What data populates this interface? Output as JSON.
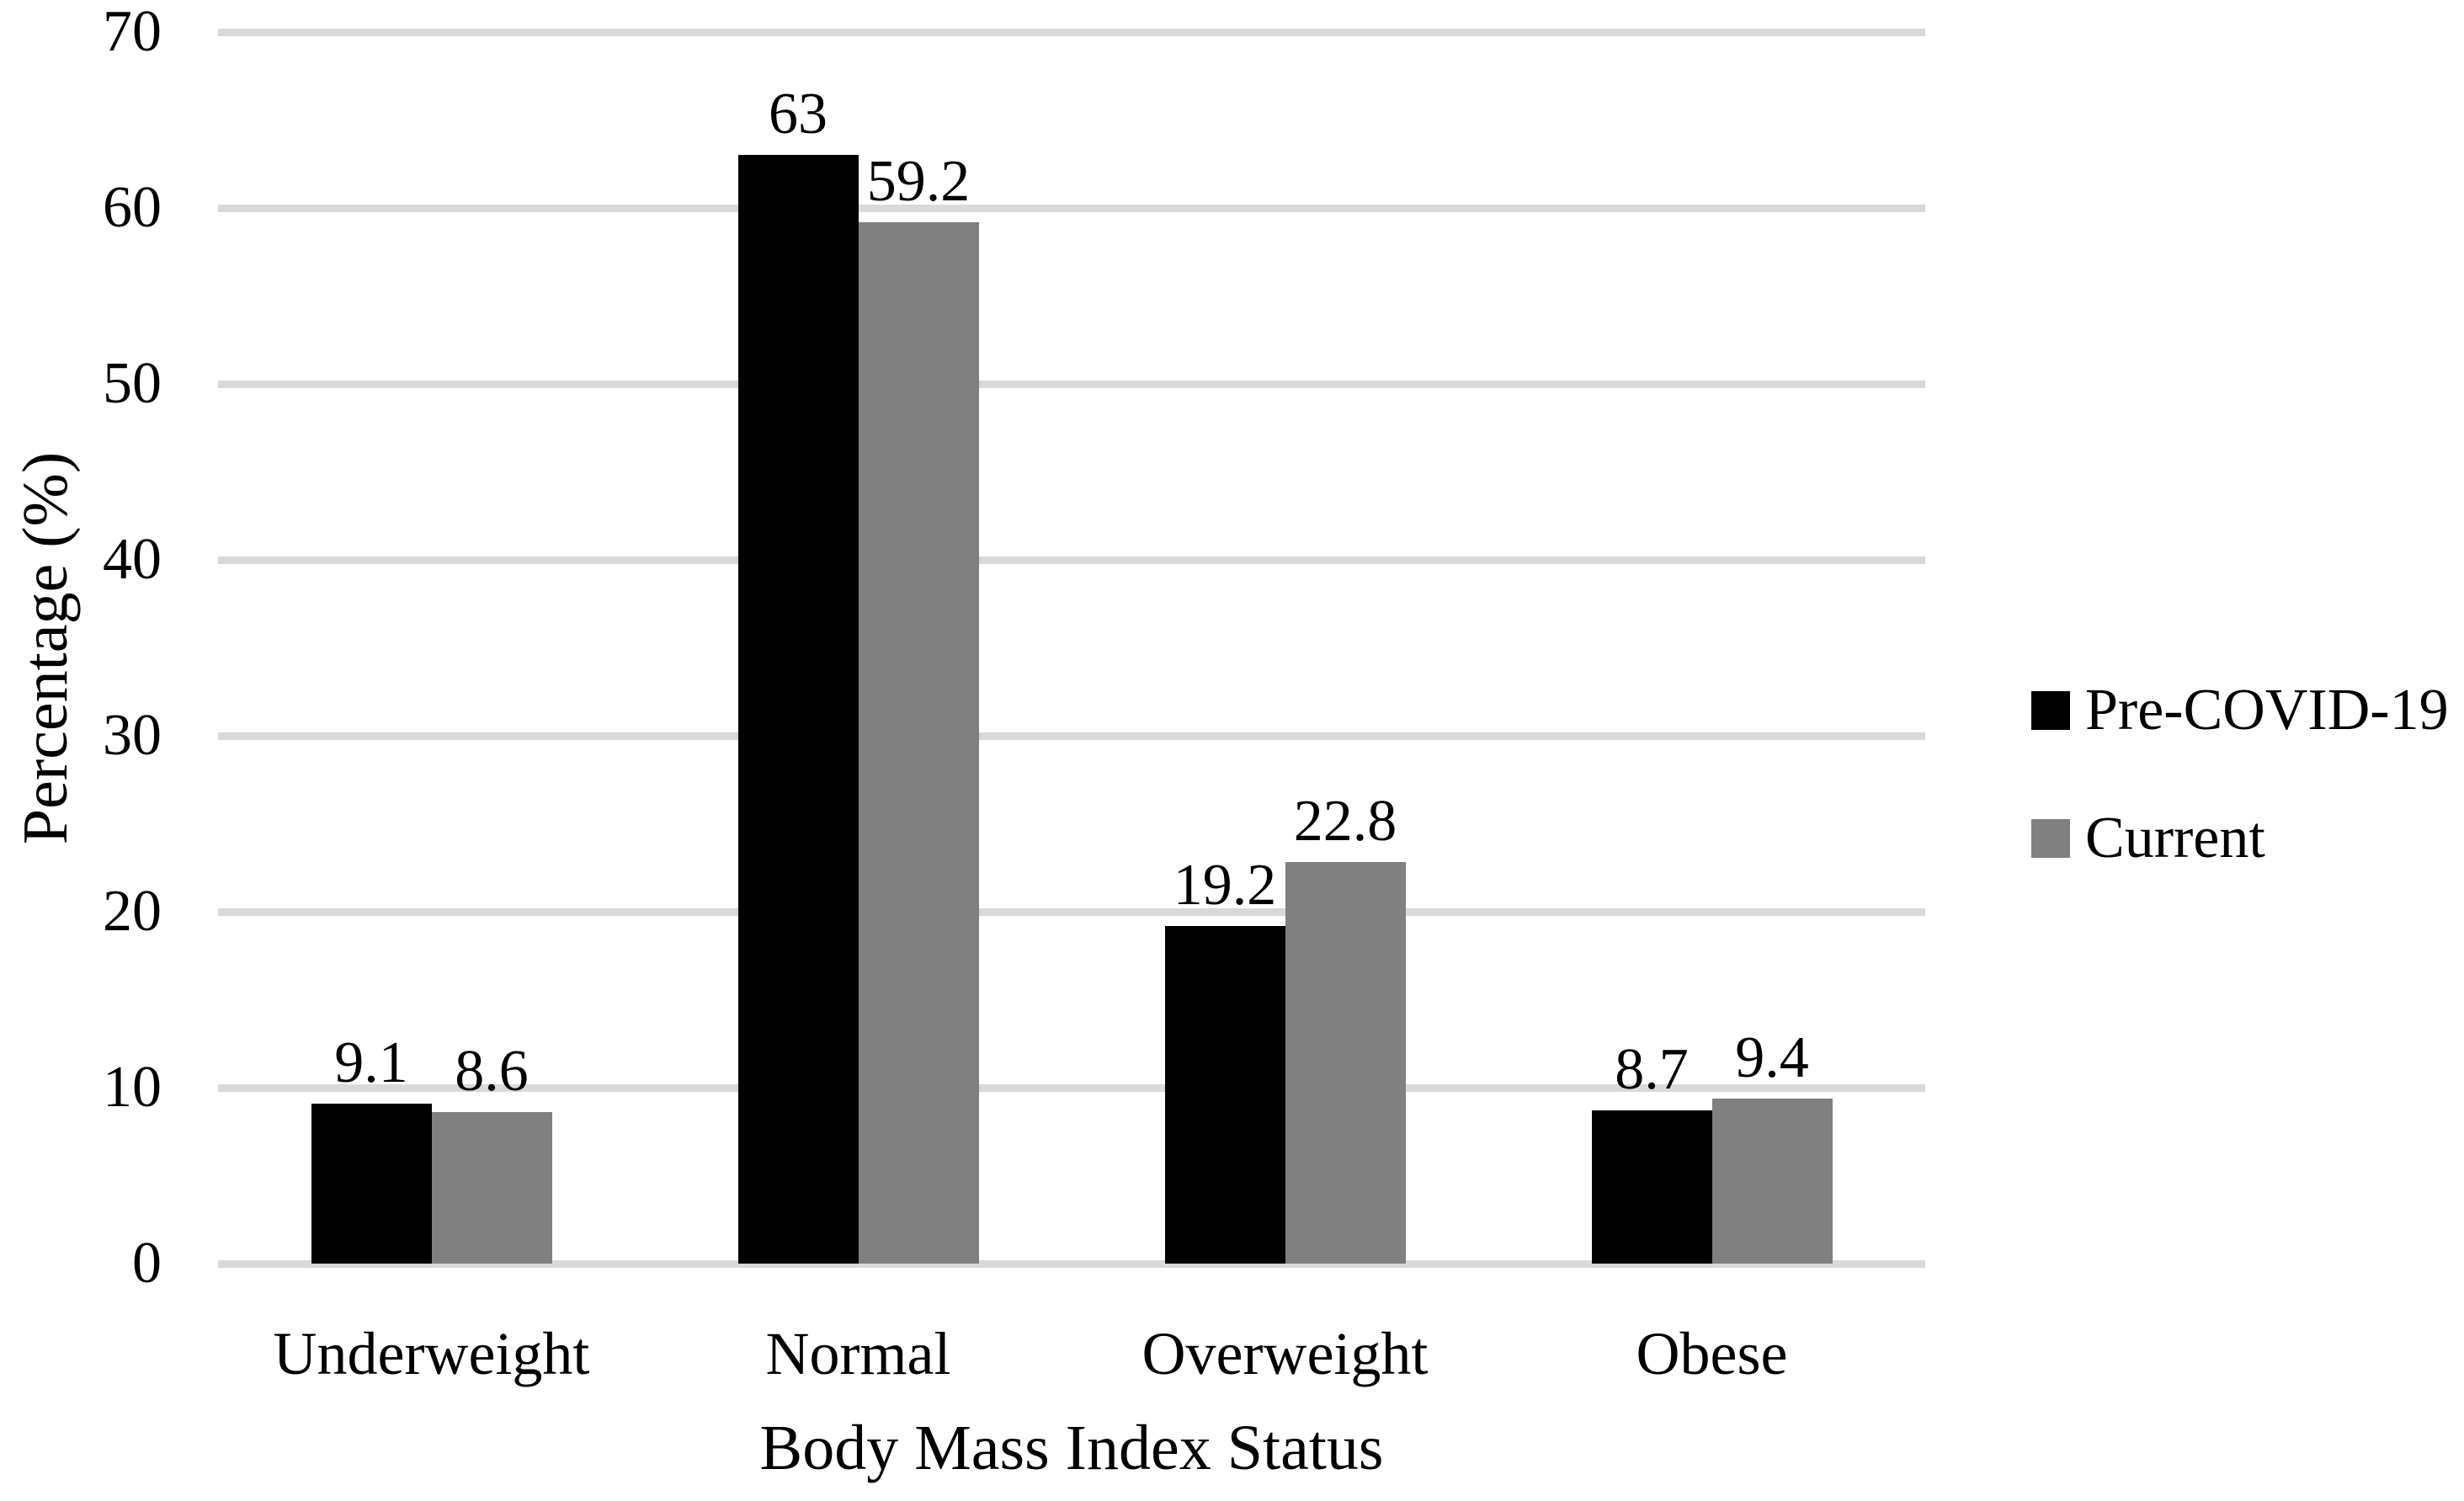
{
  "chart_data": {
    "type": "bar",
    "title": "",
    "categories": [
      "Underweight",
      "Normal",
      "Overweight",
      "Obese"
    ],
    "series": [
      {
        "name": "Pre-COVID-19",
        "color": "#000000",
        "values": [
          9.1,
          63,
          19.2,
          8.7
        ],
        "data_labels": [
          "9.1",
          "63",
          "19.2",
          "8.7"
        ]
      },
      {
        "name": "Current",
        "color": "#808080",
        "values": [
          8.6,
          59.2,
          22.8,
          9.4
        ],
        "data_labels": [
          "8.6",
          "59.2",
          "22.8",
          "9.4"
        ]
      }
    ],
    "xlabel": "Body Mass Index Status",
    "ylabel": "Percentage (%)",
    "ylim": [
      0,
      70
    ],
    "yticks": [
      "0",
      "10",
      "20",
      "30",
      "40",
      "50",
      "60",
      "70"
    ],
    "grid": "horizontal",
    "gridline_color": "#d9d9d9",
    "background_color": "#ffffff",
    "text_color": "#000000",
    "legend_position": "right",
    "legend": [
      "Pre-COVID-19",
      "Current"
    ]
  }
}
